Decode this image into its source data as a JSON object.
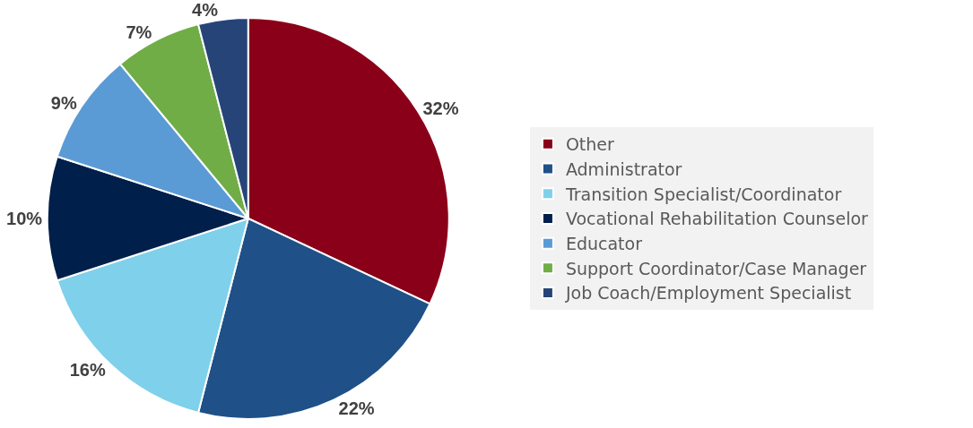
{
  "chart_data": {
    "type": "pie",
    "categories": [
      "Other",
      "Administrator",
      "Transition Specialist/Coordinator",
      "Vocational Rehabilitation Counselor",
      "Educator",
      "Support Coordinator/Case Manager",
      "Job Coach/Employment Specialist"
    ],
    "values": [
      32,
      22,
      16,
      10,
      9,
      7,
      4
    ],
    "value_labels": [
      "32%",
      "22%",
      "16%",
      "10%",
      "9%",
      "7%",
      "4%"
    ],
    "colors": [
      "#8b0019",
      "#1f5087",
      "#7fd0ea",
      "#001f4a",
      "#5b9bd5",
      "#70ad47",
      "#264478"
    ],
    "legend": "right"
  }
}
